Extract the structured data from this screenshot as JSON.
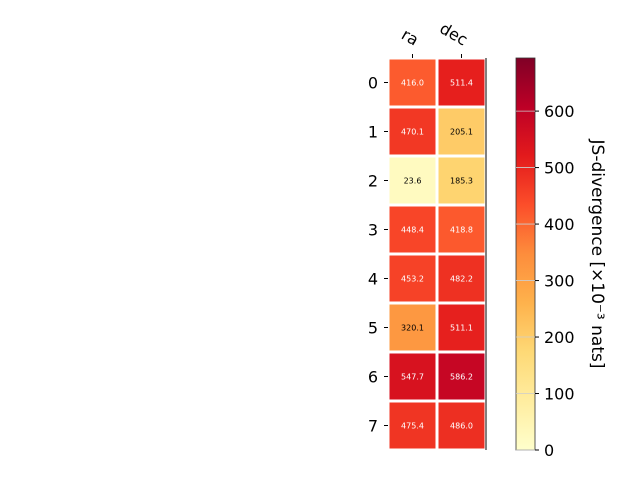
{
  "chart_data": {
    "type": "heatmap",
    "title": "",
    "columns": [
      "ra",
      "dec"
    ],
    "rows": [
      "0",
      "1",
      "2",
      "3",
      "4",
      "5",
      "6",
      "7"
    ],
    "values": [
      [
        416.0,
        511.4
      ],
      [
        470.1,
        205.1
      ],
      [
        23.6,
        185.3
      ],
      [
        448.4,
        418.8
      ],
      [
        453.2,
        482.2
      ],
      [
        320.1,
        511.1
      ],
      [
        547.7,
        586.2
      ],
      [
        475.4,
        486.0
      ]
    ],
    "value_labels": [
      [
        "416.0",
        "511.4"
      ],
      [
        "470.1",
        "205.1"
      ],
      [
        "23.6",
        "185.3"
      ],
      [
        "448.4",
        "418.8"
      ],
      [
        "453.2",
        "482.2"
      ],
      [
        "320.1",
        "511.1"
      ],
      [
        "547.7",
        "586.2"
      ],
      [
        "475.4",
        "486.0"
      ]
    ],
    "colorbar": {
      "label": "JS-divergence [×10⁻³ nats]",
      "colormap": "YlOrRd",
      "range": [
        0,
        694
      ],
      "ticks": [
        0,
        100,
        200,
        300,
        400,
        500,
        600
      ],
      "tick_labels": [
        "0",
        "100",
        "200",
        "300",
        "400",
        "500",
        "600"
      ]
    }
  }
}
